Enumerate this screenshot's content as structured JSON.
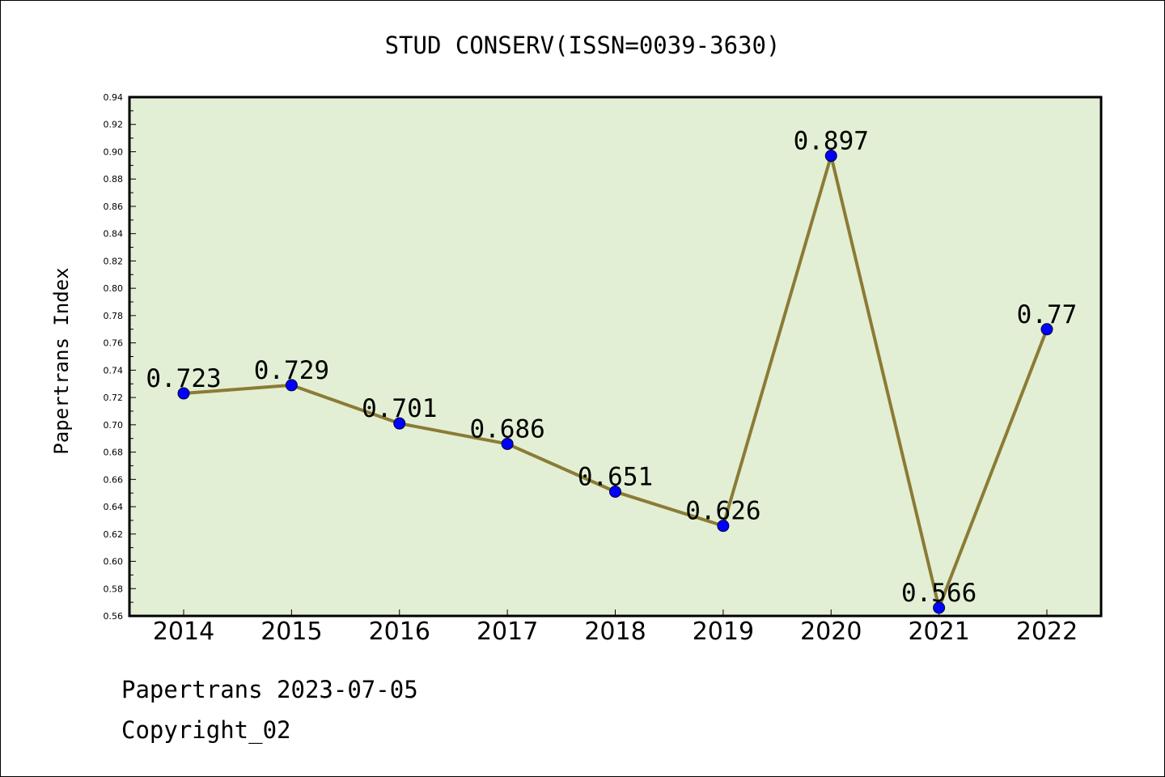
{
  "colors": {
    "plot_background": "#e2efd4",
    "line": "#8b7b35",
    "marker": "#0000ff",
    "frame": "#000000"
  },
  "footer": {
    "date_line": "Papertrans 2023-07-05",
    "copyright": "Copyright_02"
  },
  "chart_data": {
    "type": "line",
    "title": "STUD CONSERV(ISSN=0039-3630)",
    "xlabel": "",
    "ylabel": "Papertrans Index",
    "categories": [
      "2014",
      "2015",
      "2016",
      "2017",
      "2018",
      "2019",
      "2020",
      "2021",
      "2022"
    ],
    "series": [
      {
        "values": [
          0.723,
          0.729,
          0.701,
          0.686,
          0.651,
          0.626,
          0.897,
          0.566,
          0.77
        ],
        "labels": [
          "0.723",
          "0.729",
          "0.701",
          "0.686",
          "0.651",
          "0.626",
          "0.897",
          "0.566",
          "0.77"
        ]
      }
    ],
    "ylim": [
      0.56,
      0.94
    ],
    "yticks": [
      "0.56",
      "0.58",
      "0.60",
      "0.62",
      "0.64",
      "0.66",
      "0.68",
      "0.70",
      "0.72",
      "0.74",
      "0.76",
      "0.78",
      "0.80",
      "0.82",
      "0.84",
      "0.86",
      "0.88",
      "0.90",
      "0.92",
      "0.94"
    ],
    "ytick_minor_step": 0.01,
    "grid": false,
    "legend": "none"
  }
}
